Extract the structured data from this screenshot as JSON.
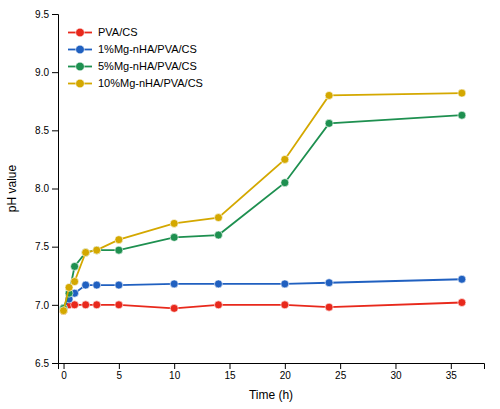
{
  "chart_data": {
    "type": "line",
    "xlabel": "Time (h)",
    "ylabel": "pH value",
    "x": [
      0,
      0.5,
      1,
      2,
      3,
      5,
      10,
      14,
      20,
      24,
      36
    ],
    "series": [
      {
        "name": "PVA/CS",
        "color": "#e8291c",
        "values": [
          6.95,
          7.0,
          7.0,
          7.0,
          7.0,
          7.0,
          6.97,
          7.0,
          7.0,
          6.98,
          7.02
        ]
      },
      {
        "name": "1%Mg-nHA/PVA/CS",
        "color": "#2060c0",
        "values": [
          6.97,
          7.05,
          7.1,
          7.17,
          7.17,
          7.17,
          7.18,
          7.18,
          7.18,
          7.19,
          7.22
        ]
      },
      {
        "name": "5%Mg-nHA/PVA/CS",
        "color": "#1e9050",
        "values": [
          6.97,
          7.1,
          7.33,
          7.45,
          7.47,
          7.47,
          7.58,
          7.6,
          8.05,
          8.56,
          8.63
        ]
      },
      {
        "name": "10%Mg-nHA/PVA/CS",
        "color": "#d4a800",
        "values": [
          6.95,
          7.15,
          7.2,
          7.45,
          7.47,
          7.56,
          7.7,
          7.75,
          8.25,
          8.8,
          8.82
        ]
      }
    ],
    "xlim": [
      -0.5,
      38
    ],
    "ylim": [
      6.5,
      9.5
    ],
    "xticks": [
      0,
      5,
      10,
      15,
      20,
      25,
      30,
      35
    ],
    "yticks": [
      6.5,
      {
        "value": 7.0,
        "label": "7.0"
      },
      7.5,
      {
        "value": 8.0,
        "label": "8.0"
      },
      8.5,
      {
        "value": 9.0,
        "label": "9.0"
      },
      9.5
    ],
    "marker": "circle",
    "legend": "upper left",
    "grid": false
  }
}
